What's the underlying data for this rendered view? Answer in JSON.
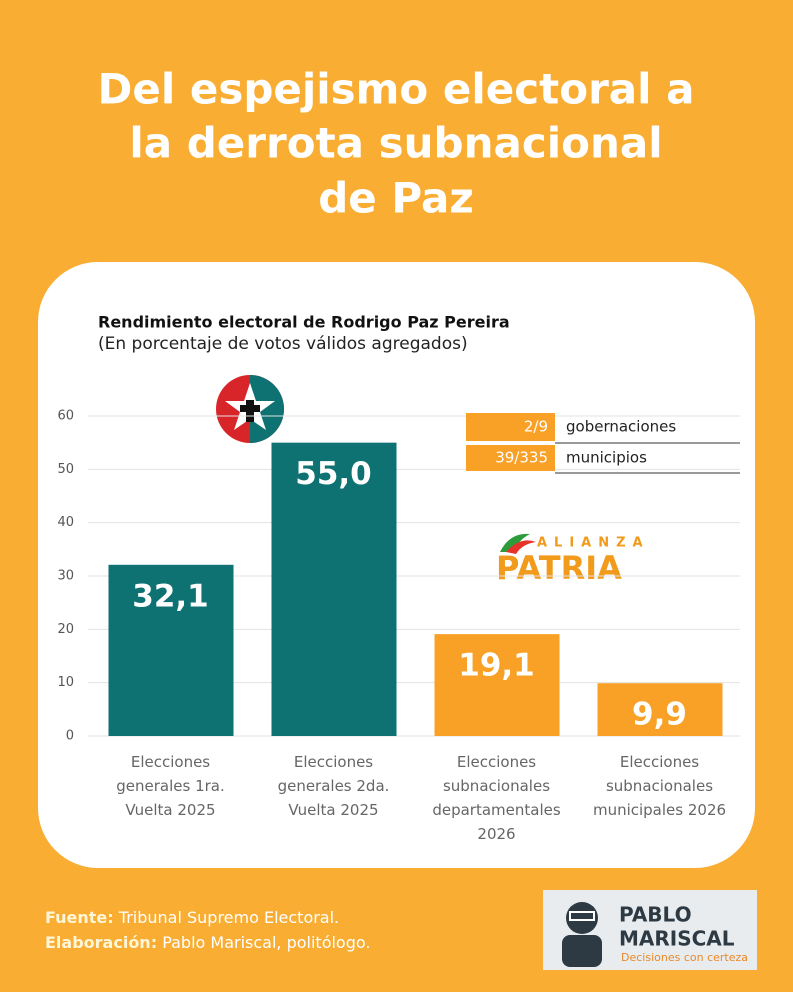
{
  "header": {
    "title": [
      "Del espejismo electoral a",
      "la derrota subnacional",
      "de Paz"
    ]
  },
  "chart_data": {
    "type": "bar",
    "title": "Rendimiento electoral de Rodrigo Paz Pereira",
    "subtitle": "(En porcentaje de votos válidos agregados)",
    "categories": [
      "Elecciones generales 1ra. Vuelta 2025",
      "Elecciones generales 2da. Vuelta 2025",
      "Elecciones subnacionales departamentales 2026",
      "Elecciones subnacionales municipales 2026"
    ],
    "values": [
      32.1,
      55.0,
      19.1,
      9.9
    ],
    "value_labels": [
      "32,1",
      "55,0",
      "19,1",
      "9,9"
    ],
    "colors": [
      "#0e7172",
      "#0e7172",
      "#f9a126",
      "#f9a126"
    ],
    "ylim": [
      0,
      60
    ],
    "yticks": [
      0,
      10,
      20,
      30,
      40,
      50,
      60
    ],
    "grid": true,
    "table": [
      {
        "value": "2/9",
        "label": "gobernaciones"
      },
      {
        "value": "39/335",
        "label": "municipios"
      }
    ],
    "logo_text": [
      "ALIANZA",
      "PATRIA"
    ]
  },
  "footer": {
    "source_label": "Fuente:",
    "source": "Tribunal Supremo Electoral.",
    "author_label": "Elaboración:",
    "author": "Pablo Mariscal, politólogo."
  },
  "brand": {
    "name": [
      "PABLO",
      "MARISCAL"
    ],
    "tagline": "Decisiones con certeza"
  }
}
